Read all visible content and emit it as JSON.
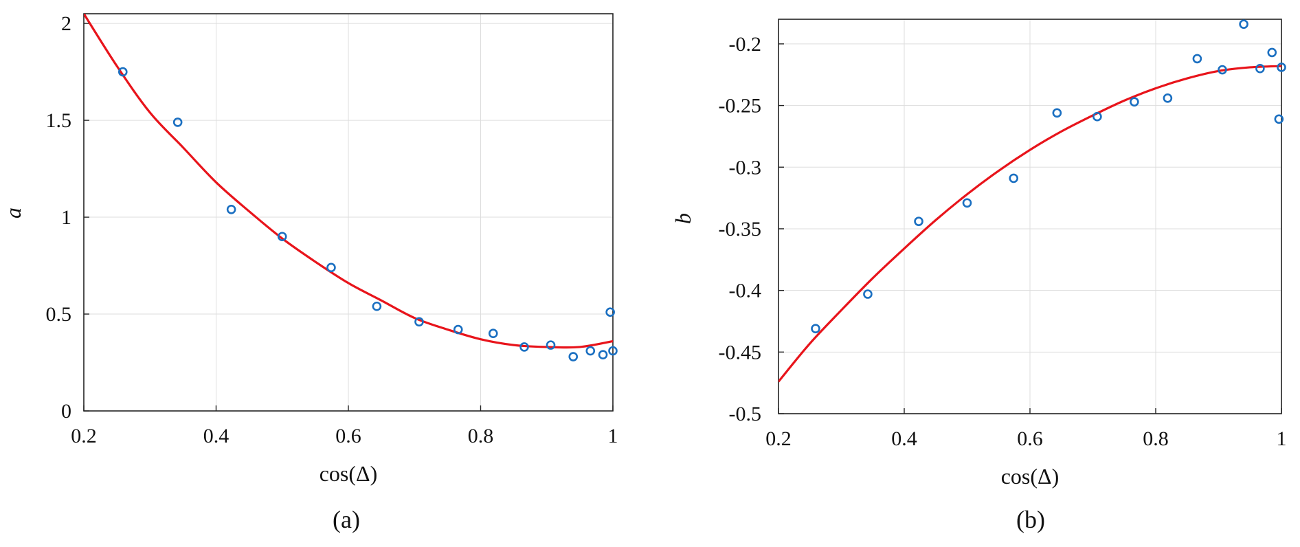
{
  "colors": {
    "fit": "#e8141b",
    "points": "#1a6fc1"
  },
  "chart_data": [
    {
      "type": "scatter",
      "caption": "(a)",
      "xlabel": "cos(Δ)",
      "ylabel": "a",
      "xlim": [
        0.2,
        1.0
      ],
      "ylim": [
        0,
        2.05
      ],
      "xticks": [
        0.2,
        0.4,
        0.6,
        0.8,
        1.0
      ],
      "xtick_labels": [
        "0.2",
        "0.4",
        "0.6",
        "0.8",
        "1"
      ],
      "yticks": [
        0,
        0.5,
        1.0,
        1.5,
        2.0
      ],
      "ytick_labels": [
        "0",
        "0.5",
        "1",
        "1.5",
        "2"
      ],
      "grid": true,
      "series": [
        {
          "kind": "markers",
          "x": [
            0.259,
            0.342,
            0.423,
            0.5,
            0.574,
            0.643,
            0.707,
            0.766,
            0.819,
            0.866,
            0.906,
            0.94,
            0.966,
            0.985,
            0.996,
            1.0
          ],
          "y": [
            1.75,
            1.49,
            1.04,
            0.9,
            0.74,
            0.54,
            0.46,
            0.42,
            0.4,
            0.33,
            0.34,
            0.28,
            0.31,
            0.29,
            0.51,
            0.31
          ]
        },
        {
          "kind": "line",
          "x": [
            0.2,
            0.25,
            0.3,
            0.35,
            0.4,
            0.45,
            0.5,
            0.55,
            0.6,
            0.65,
            0.7,
            0.75,
            0.8,
            0.85,
            0.9,
            0.95,
            1.0
          ],
          "y": [
            2.05,
            1.78,
            1.54,
            1.36,
            1.18,
            1.03,
            0.89,
            0.77,
            0.66,
            0.57,
            0.48,
            0.42,
            0.37,
            0.34,
            0.33,
            0.33,
            0.36
          ]
        }
      ]
    },
    {
      "type": "scatter",
      "caption": "(b)",
      "xlabel": "cos(Δ)",
      "ylabel": "b",
      "xlim": [
        0.2,
        1.0
      ],
      "ylim": [
        -0.5,
        -0.18
      ],
      "xticks": [
        0.2,
        0.4,
        0.6,
        0.8,
        1.0
      ],
      "xtick_labels": [
        "0.2",
        "0.4",
        "0.6",
        "0.8",
        "1"
      ],
      "yticks": [
        -0.5,
        -0.45,
        -0.4,
        -0.35,
        -0.3,
        -0.25,
        -0.2
      ],
      "ytick_labels": [
        "-0.5",
        "-0.45",
        "-0.4",
        "-0.35",
        "-0.3",
        "-0.25",
        "-0.2"
      ],
      "grid": true,
      "series": [
        {
          "kind": "markers",
          "x": [
            0.259,
            0.342,
            0.423,
            0.5,
            0.574,
            0.643,
            0.707,
            0.766,
            0.819,
            0.866,
            0.906,
            0.94,
            0.966,
            0.985,
            0.996,
            1.0
          ],
          "y": [
            -0.431,
            -0.403,
            -0.344,
            -0.329,
            -0.309,
            -0.256,
            -0.259,
            -0.247,
            -0.244,
            -0.212,
            -0.221,
            -0.184,
            -0.22,
            -0.207,
            -0.261,
            -0.219
          ]
        },
        {
          "kind": "line",
          "x": [
            0.2,
            0.25,
            0.3,
            0.35,
            0.4,
            0.45,
            0.5,
            0.55,
            0.6,
            0.65,
            0.7,
            0.75,
            0.8,
            0.85,
            0.9,
            0.95,
            1.0
          ],
          "y": [
            -0.474,
            -0.443,
            -0.416,
            -0.39,
            -0.366,
            -0.343,
            -0.322,
            -0.303,
            -0.286,
            -0.271,
            -0.258,
            -0.246,
            -0.236,
            -0.228,
            -0.222,
            -0.219,
            -0.218
          ]
        }
      ]
    }
  ]
}
